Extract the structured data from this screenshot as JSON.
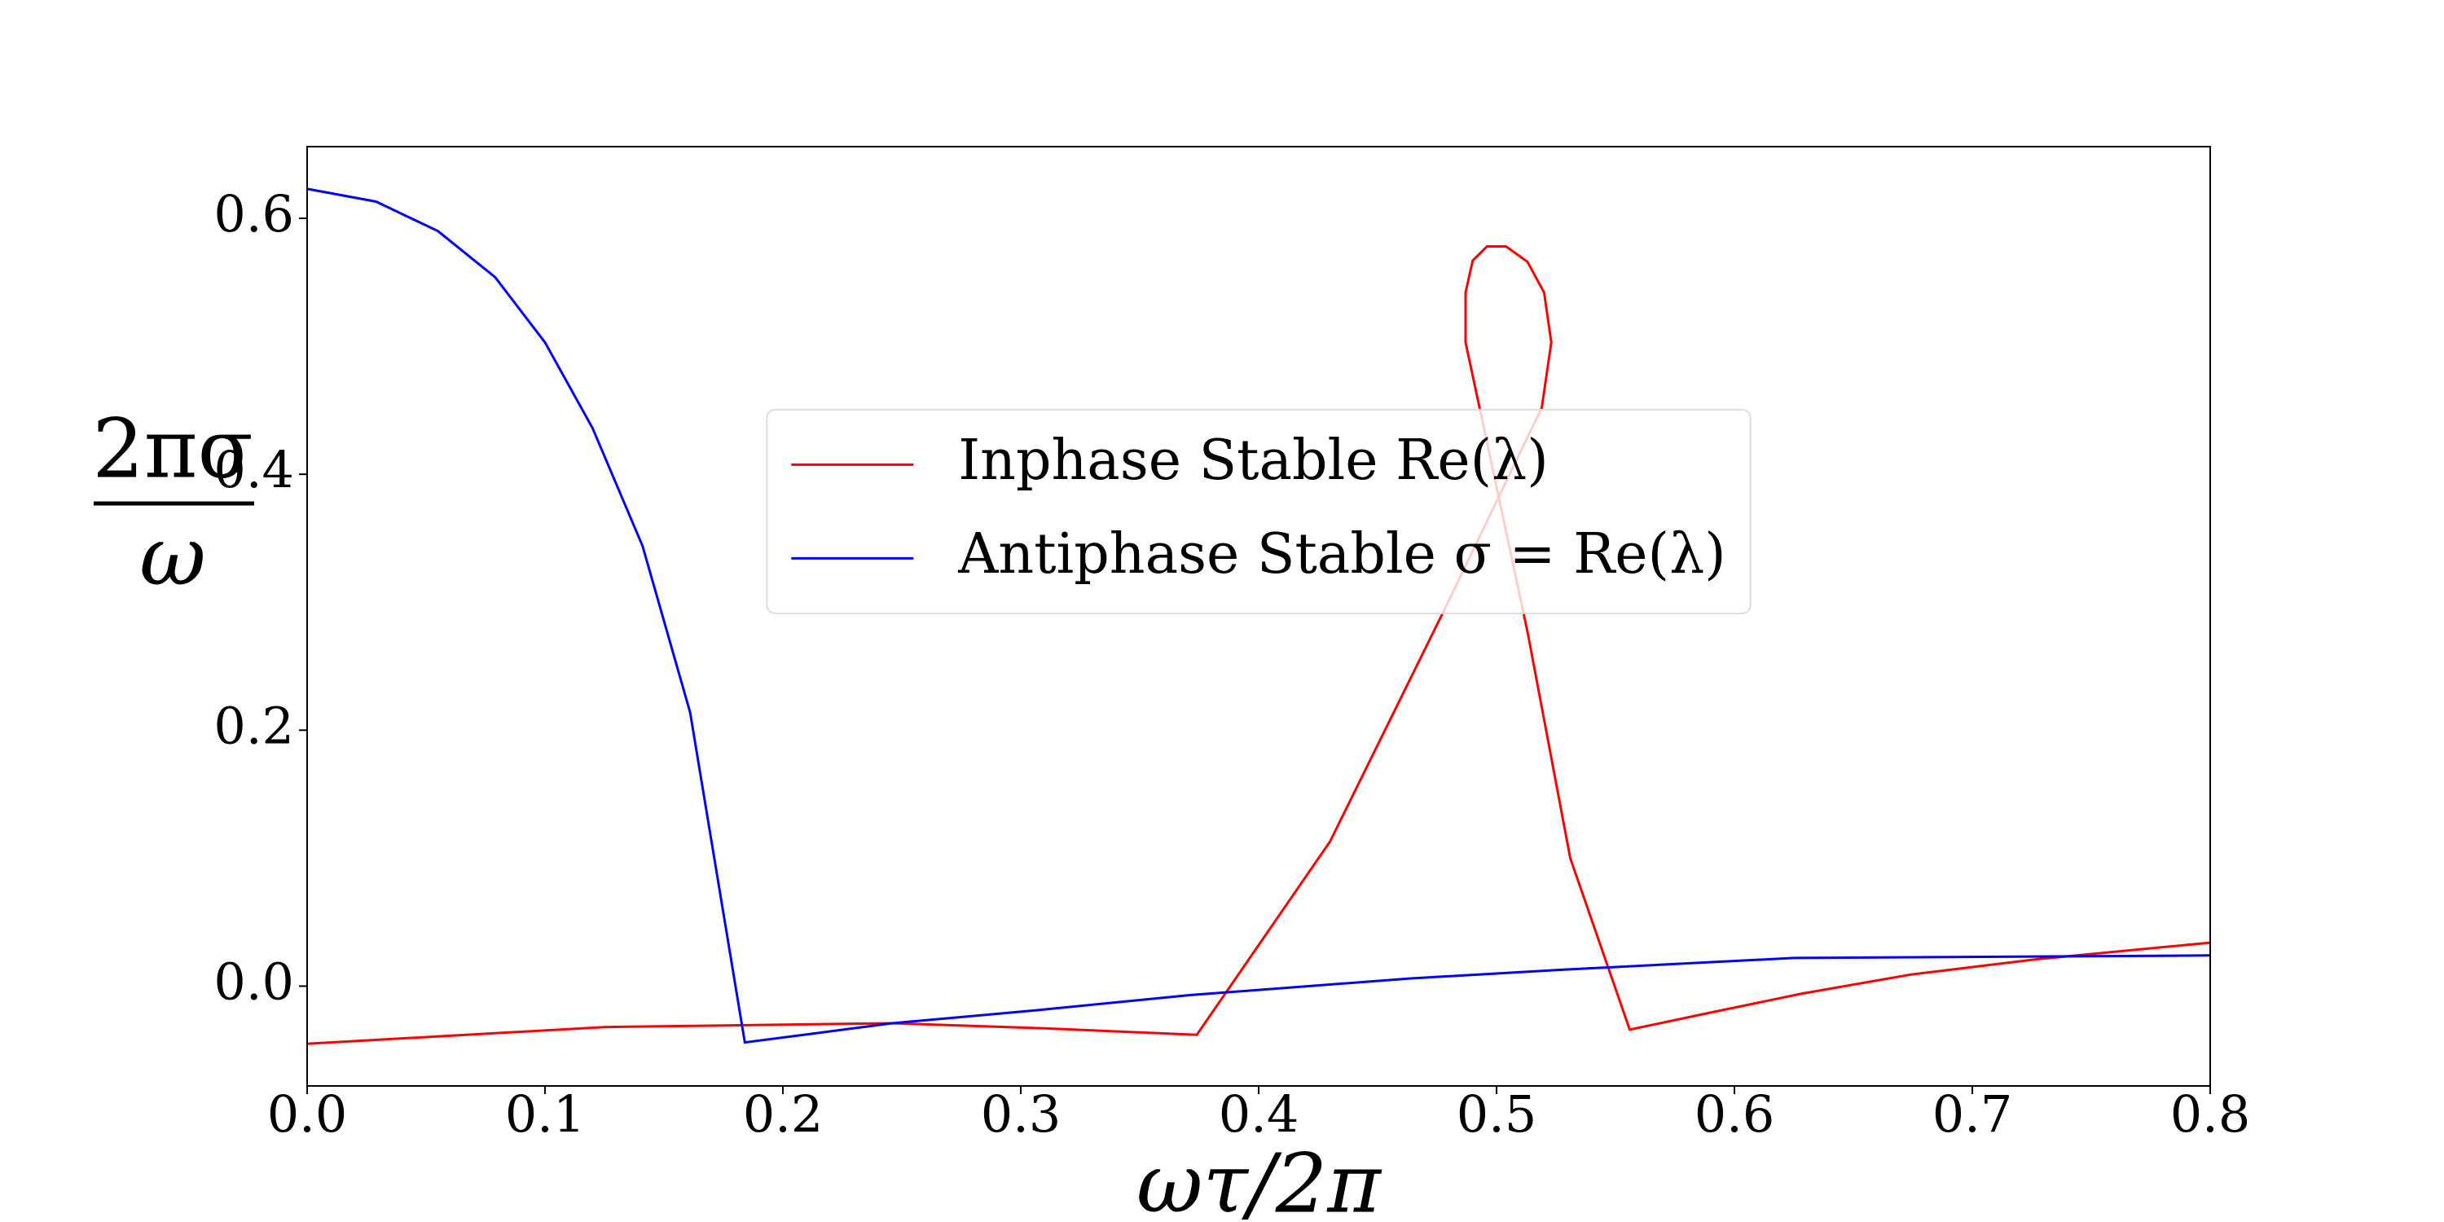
{
  "chart_data": {
    "type": "line",
    "xlabel": "ωτ/2π",
    "ylabel": {
      "numerator": "2πσ",
      "denominator": "ω"
    },
    "xlim": [
      0,
      0.8
    ],
    "ylim": [
      -0.078,
      0.656
    ],
    "xticks": [
      {
        "value": 0,
        "label": "0.0"
      },
      0.1,
      0.2,
      0.3,
      0.4,
      0.5,
      0.6,
      0.7,
      0.8
    ],
    "yticks": [
      {
        "value": 0,
        "label": "0.0"
      },
      0.2,
      0.4,
      0.6
    ],
    "legend_loc": "center",
    "series": [
      {
        "name": "Inphase Stable Re(λ)",
        "color": "#ff0000",
        "x": [
          0,
          0.125,
          0.246,
          0.31,
          0.374,
          0.43,
          0.477,
          0.519,
          0.523,
          0.52,
          0.513,
          0.504,
          0.496,
          0.49,
          0.487,
          0.487,
          0.513,
          0.531,
          0.556,
          0.589,
          0.628,
          0.674,
          0.727,
          0.8
        ],
        "values": [
          -0.045,
          -0.032,
          -0.029,
          -0.033,
          -0.038,
          0.113,
          0.29,
          0.452,
          0.503,
          0.542,
          0.566,
          0.578,
          0.578,
          0.567,
          0.542,
          0.503,
          0.277,
          0.1,
          -0.034,
          -0.021,
          -0.006,
          0.009,
          0.021,
          0.034
        ]
      },
      {
        "name": "Antiphase Stable σ = Re(λ)",
        "color": "#0000ff",
        "x": [
          0,
          0.029,
          0.055,
          0.079,
          0.1,
          0.12,
          0.141,
          0.161,
          0.184,
          0.213,
          0.246,
          0.306,
          0.371,
          0.464,
          0.529,
          0.625,
          0.8
        ],
        "values": [
          0.623,
          0.613,
          0.59,
          0.554,
          0.503,
          0.436,
          0.344,
          0.214,
          -0.044,
          -0.037,
          -0.029,
          -0.019,
          -0.007,
          0.006,
          0.013,
          0.022,
          0.024
        ]
      }
    ]
  }
}
